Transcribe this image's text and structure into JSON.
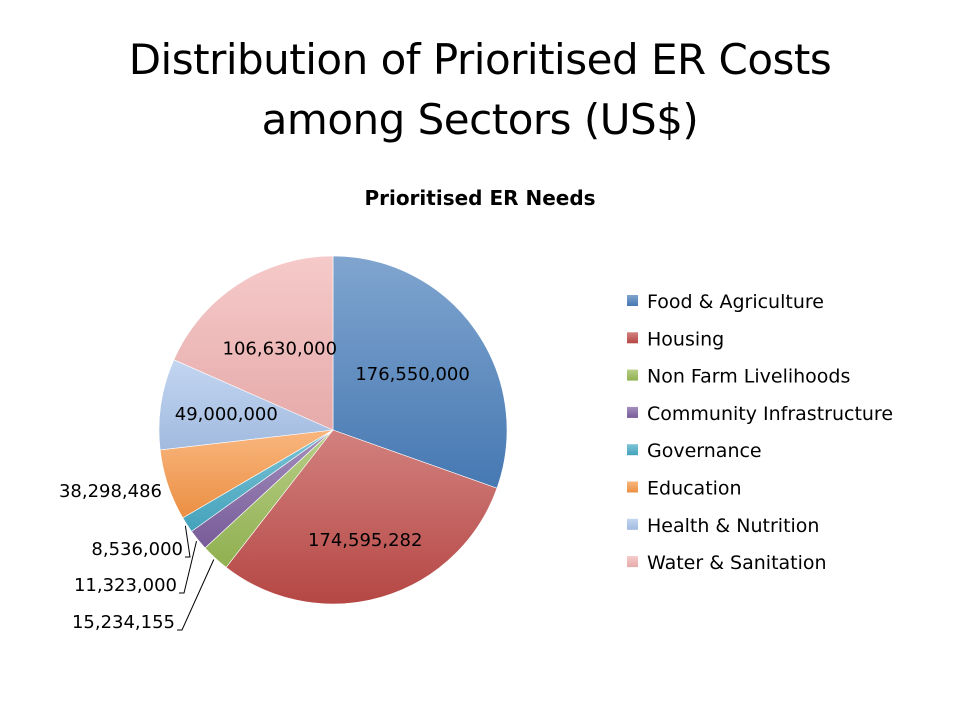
{
  "slide": {
    "title_line1": "Distribution of Prioritised ER Costs",
    "title_line2": "among Sectors (US$)"
  },
  "chart_data": {
    "type": "pie",
    "title": "Prioritised ER Needs",
    "categories": [
      "Food & Agriculture",
      "Housing",
      "Non Farm Livelihoods",
      "Community Infrastructure",
      "Governance",
      "Education",
      "Health & Nutrition",
      "Water & Sanitation"
    ],
    "values": [
      176550000,
      174595282,
      15234155,
      11323000,
      8536000,
      38298486,
      49000000,
      106630000
    ],
    "value_labels": [
      "176,550,000",
      "174,595,282",
      "15,234,155",
      "11,323,000",
      "8,536,000",
      "38,298,486",
      "49,000,000",
      "106,630,000"
    ],
    "colors": [
      "#4a7ebb",
      "#be4b48",
      "#98b954",
      "#7d60a0",
      "#46aac5",
      "#f79646",
      "#a9c4eb",
      "#f2b3b3"
    ],
    "legend_position": "right",
    "start_angle": "12 o'clock",
    "direction": "clockwise"
  }
}
